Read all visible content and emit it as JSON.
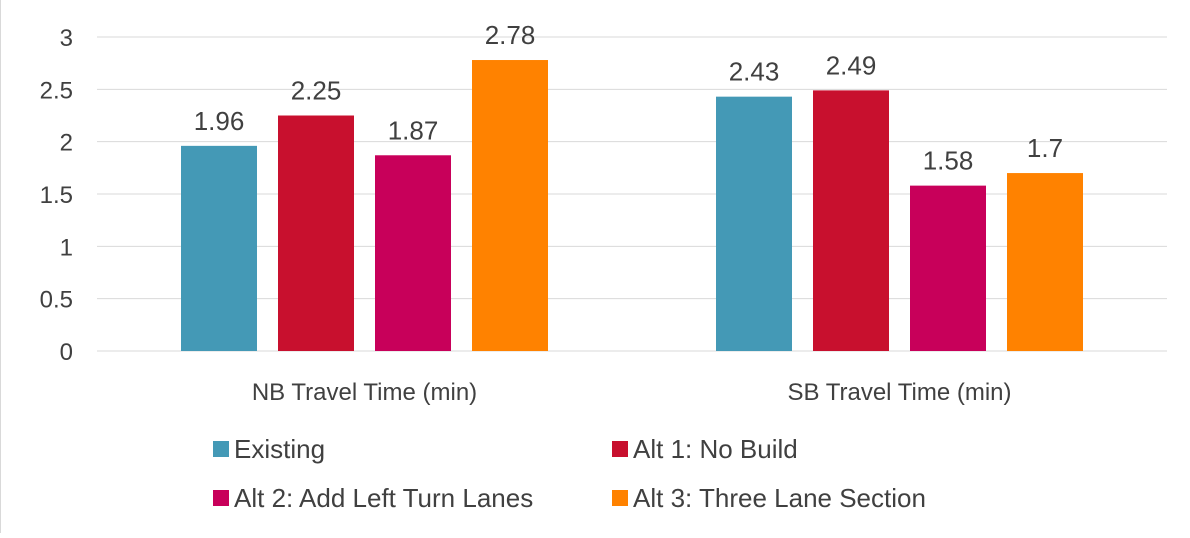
{
  "chart_data": {
    "type": "bar",
    "categories": [
      "NB Travel Time (min)",
      "SB Travel Time (min)"
    ],
    "series": [
      {
        "name": "Existing",
        "color": "#4499b6",
        "values": [
          1.96,
          2.43
        ]
      },
      {
        "name": "Alt 1: No Build",
        "color": "#c8102e",
        "values": [
          2.25,
          2.49
        ]
      },
      {
        "name": "Alt 2: Add Left Turn Lanes",
        "color": "#c8005a",
        "values": [
          1.87,
          1.58
        ]
      },
      {
        "name": "Alt 3: Three Lane Section",
        "color": "#ff8200",
        "values": [
          2.78,
          1.7
        ]
      }
    ],
    "ylim": [
      0,
      3
    ],
    "yticks": [
      "0",
      "0.5",
      "1",
      "1.5",
      "2",
      "2.5",
      "3"
    ],
    "data_labels": [
      [
        "1.96",
        "2.43"
      ],
      [
        "2.25",
        "2.49"
      ],
      [
        "1.87",
        "1.58"
      ],
      [
        "2.78",
        "1.7"
      ]
    ],
    "grid": true,
    "legend_position": "bottom"
  }
}
